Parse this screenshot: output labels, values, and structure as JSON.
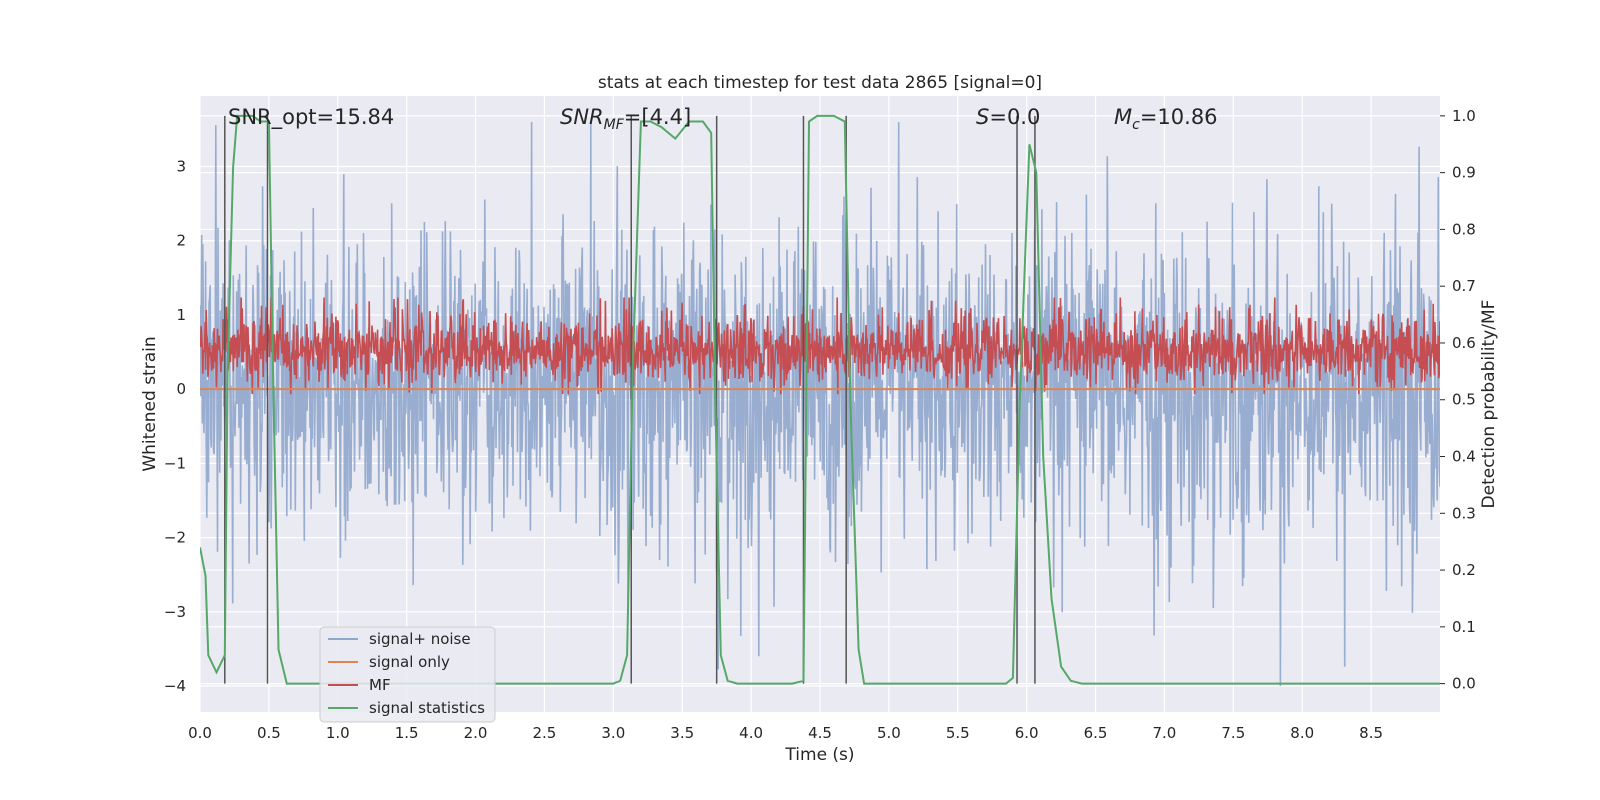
{
  "chart_data": {
    "type": "line",
    "title": "stats at each timestep for test data 2865 [signal=0]",
    "xlabel": "Time (s)",
    "ylabel_left": "Whitened strain",
    "ylabel_right": "Detection probability/MF",
    "xlim": [
      0,
      9.0
    ],
    "ylim_left": [
      -4.35,
      3.95
    ],
    "ylim_right": [
      -0.05,
      1.035
    ],
    "x_ticks": [
      "0.0",
      "0.5",
      "1.0",
      "1.5",
      "2.0",
      "2.5",
      "3.0",
      "3.5",
      "4.0",
      "4.5",
      "5.0",
      "5.5",
      "6.0",
      "6.5",
      "7.0",
      "7.5",
      "8.0",
      "8.5"
    ],
    "y_ticks_left": [
      "−4",
      "−3",
      "−2",
      "−1",
      "0",
      "1",
      "2",
      "3"
    ],
    "y_ticks_right": [
      "0.0",
      "0.1",
      "0.2",
      "0.3",
      "0.4",
      "0.5",
      "0.6",
      "0.7",
      "0.8",
      "0.9",
      "1.0"
    ],
    "grid": true,
    "legend_position": "lower-left",
    "annotations": {
      "snr_opt": "SNR_opt=15.84",
      "snr_mf_main": "SNR",
      "snr_mf_sub": "MF",
      "snr_mf_rest": "=[4.4]",
      "s_main": "S",
      "s_rest": "=0.0",
      "mc_main": "M",
      "mc_sub": "c",
      "mc_rest": "=10.86"
    },
    "series": [
      {
        "name": "signal+ noise",
        "color": "#8fa6cc",
        "description_range": [
          -2.2,
          2.2
        ]
      },
      {
        "name": "signal only",
        "color": "#dd8452",
        "values_constant": 0.0
      },
      {
        "name": "MF",
        "color": "#c44e52",
        "axis": "right",
        "description_range": [
          0.51,
          0.66
        ]
      },
      {
        "name": "signal statistics",
        "color": "#55a868",
        "axis": "right",
        "x": [
          0.0,
          0.04,
          0.06,
          0.12,
          0.18,
          0.2,
          0.24,
          0.27,
          0.32,
          0.38,
          0.44,
          0.5,
          0.53,
          0.57,
          0.63,
          0.7,
          1.0,
          1.5,
          2.0,
          2.5,
          3.0,
          3.05,
          3.1,
          3.14,
          3.2,
          3.27,
          3.35,
          3.45,
          3.55,
          3.65,
          3.71,
          3.74,
          3.78,
          3.83,
          3.9,
          4.0,
          4.3,
          4.38,
          4.42,
          4.48,
          4.6,
          4.68,
          4.72,
          4.78,
          4.82,
          5.0,
          5.5,
          5.85,
          5.9,
          5.95,
          6.02,
          6.07,
          6.12,
          6.18,
          6.25,
          6.32,
          6.4,
          7.0,
          8.0,
          9.0
        ],
        "values": [
          0.24,
          0.19,
          0.05,
          0.02,
          0.05,
          0.55,
          0.91,
          1.0,
          1.0,
          1.0,
          0.99,
          0.99,
          0.55,
          0.06,
          0.0,
          0.0,
          0.0,
          0.0,
          0.0,
          0.0,
          0.0,
          0.005,
          0.05,
          0.55,
          0.99,
          0.99,
          0.98,
          0.96,
          0.99,
          0.99,
          0.97,
          0.5,
          0.05,
          0.005,
          0.0,
          0.0,
          0.0,
          0.005,
          0.99,
          1.0,
          1.0,
          0.99,
          0.5,
          0.06,
          0.0,
          0.0,
          0.0,
          0.0,
          0.01,
          0.5,
          0.95,
          0.9,
          0.4,
          0.15,
          0.03,
          0.005,
          0.0,
          0.0,
          0.0,
          0.0
        ]
      }
    ],
    "vertical_markers_x": [
      0.18,
      0.49,
      3.13,
      3.75,
      4.38,
      4.69,
      5.93,
      6.06
    ]
  }
}
